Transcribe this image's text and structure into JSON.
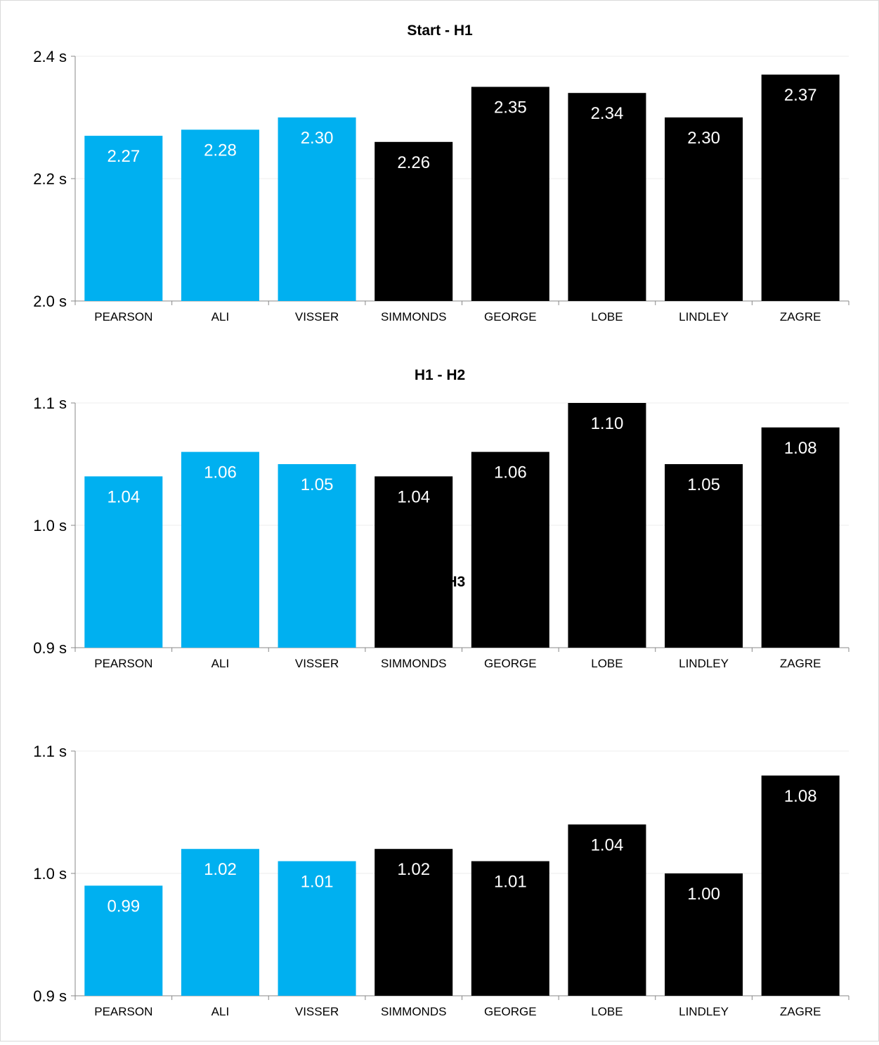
{
  "colors": {
    "highlight": "#00b0f0",
    "default": "#000000",
    "label_on_highlight": "#ffffff",
    "label_on_default": "#ffffff",
    "grid": "#ececec",
    "axis": "#888888"
  },
  "chart_data": [
    {
      "type": "bar",
      "title": "Start - H1",
      "categories": [
        "PEARSON",
        "ALI",
        "VISSER",
        "SIMMONDS",
        "GEORGE",
        "LOBE",
        "LINDLEY",
        "ZAGRE"
      ],
      "values": [
        2.27,
        2.28,
        2.3,
        2.26,
        2.35,
        2.34,
        2.3,
        2.37
      ],
      "data_labels": [
        "2.27",
        "2.28",
        "2.30",
        "2.26",
        "2.35",
        "2.34",
        "2.30",
        "2.37"
      ],
      "highlighted": [
        true,
        true,
        true,
        false,
        false,
        false,
        false,
        false
      ],
      "ylim": [
        2.0,
        2.4
      ],
      "yticks": [
        2.0,
        2.2,
        2.4
      ],
      "ytick_labels": [
        "2.0 s",
        "2.2 s",
        "2.4 s"
      ],
      "grid": true
    },
    {
      "type": "bar",
      "title": "H1 - H2",
      "categories": [
        "PEARSON",
        "ALI",
        "VISSER",
        "SIMMONDS",
        "GEORGE",
        "LOBE",
        "LINDLEY",
        "ZAGRE"
      ],
      "values": [
        1.04,
        1.06,
        1.05,
        1.04,
        1.06,
        1.1,
        1.05,
        1.08
      ],
      "data_labels": [
        "1.04",
        "1.06",
        "1.05",
        "1.04",
        "1.06",
        "1.10",
        "1.05",
        "1.08"
      ],
      "highlighted": [
        true,
        true,
        true,
        false,
        false,
        false,
        false,
        false
      ],
      "ylim": [
        0.9,
        1.1
      ],
      "yticks": [
        0.9,
        1.0,
        1.1
      ],
      "ytick_labels": [
        "0.9 s",
        "1.0 s",
        "1.1 s"
      ],
      "grid": true
    },
    {
      "type": "bar",
      "title": "H2 - H3",
      "categories": [
        "PEARSON",
        "ALI",
        "VISSER",
        "SIMMONDS",
        "GEORGE",
        "LOBE",
        "LINDLEY",
        "ZAGRE"
      ],
      "values": [
        0.99,
        1.02,
        1.01,
        1.02,
        1.01,
        1.04,
        1.0,
        1.08
      ],
      "data_labels": [
        "0.99",
        "1.02",
        "1.01",
        "1.02",
        "1.01",
        "1.04",
        "1.00",
        "1.08"
      ],
      "highlighted": [
        true,
        true,
        true,
        false,
        false,
        false,
        false,
        false
      ],
      "ylim": [
        0.9,
        1.1
      ],
      "yticks": [
        0.9,
        1.0,
        1.1
      ],
      "ytick_labels": [
        "0.9 s",
        "1.0 s",
        "1.1 s"
      ],
      "grid": true
    }
  ]
}
